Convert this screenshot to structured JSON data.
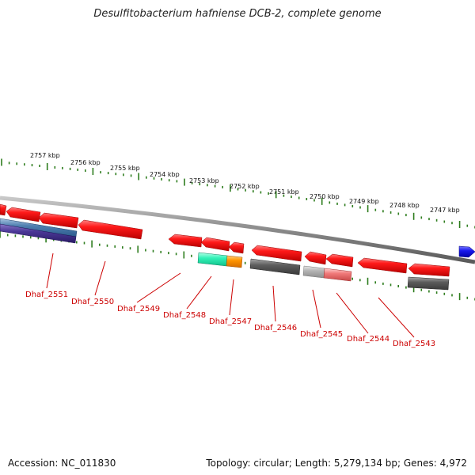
{
  "title": "Desulfitobacterium hafniense DCB-2, complete genome",
  "footer": {
    "accession": "Accession: NC_011830",
    "summary": "Topology: circular; Length: 5,279,134 bp; Genes: 4,972"
  },
  "colors": {
    "backbone": "#8a8a8a",
    "tick": "#2e7d1e",
    "gene_label": "#cc0000",
    "gene_red": "#ee1111",
    "gene_blue": "#1111dd"
  },
  "kbp_labels": [
    "2757 kbp",
    "2756 kbp",
    "2755 kbp",
    "2754 kbp",
    "2753 kbp",
    "2752 kbp",
    "2751 kbp",
    "2750 kbp",
    "2749 kbp",
    "2748 kbp",
    "2747 kbp"
  ],
  "gene_labels": [
    "Dhaf_2551",
    "Dhaf_2550",
    "Dhaf_2549",
    "Dhaf_2548",
    "Dhaf_2547",
    "Dhaf_2546",
    "Dhaf_2545",
    "Dhaf_2544",
    "Dhaf_2543"
  ]
}
